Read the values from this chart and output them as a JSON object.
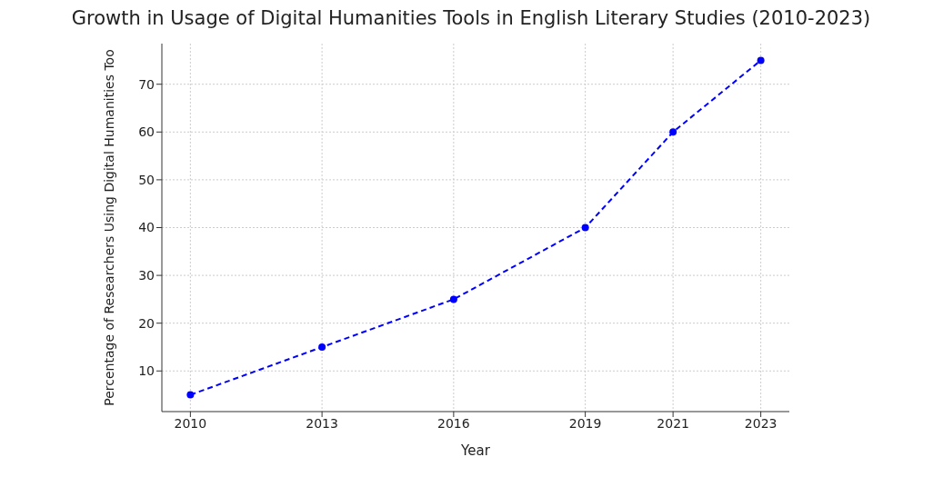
{
  "chart_data": {
    "type": "line",
    "title": "Growth in Usage of Digital Humanities Tools in English Literary Studies (2010-2023)",
    "xlabel": "Year",
    "ylabel": "Percentage of Researchers Using Digital Humanities Too",
    "x": [
      2010,
      2013,
      2016,
      2019,
      2021,
      2023
    ],
    "series": [
      {
        "color": "#0000ff",
        "values": [
          5,
          15,
          25,
          40,
          60,
          75
        ]
      }
    ],
    "xlim": [
      2009.35,
      2023.65
    ],
    "xticks": [
      2010,
      2013,
      2016,
      2019,
      2021,
      2023
    ],
    "ylim": [
      1.5,
      78.5
    ],
    "yticks": [
      10,
      20,
      30,
      40,
      50,
      60,
      70
    ],
    "grid": true,
    "marker": "circle",
    "line_style": "dashed"
  }
}
